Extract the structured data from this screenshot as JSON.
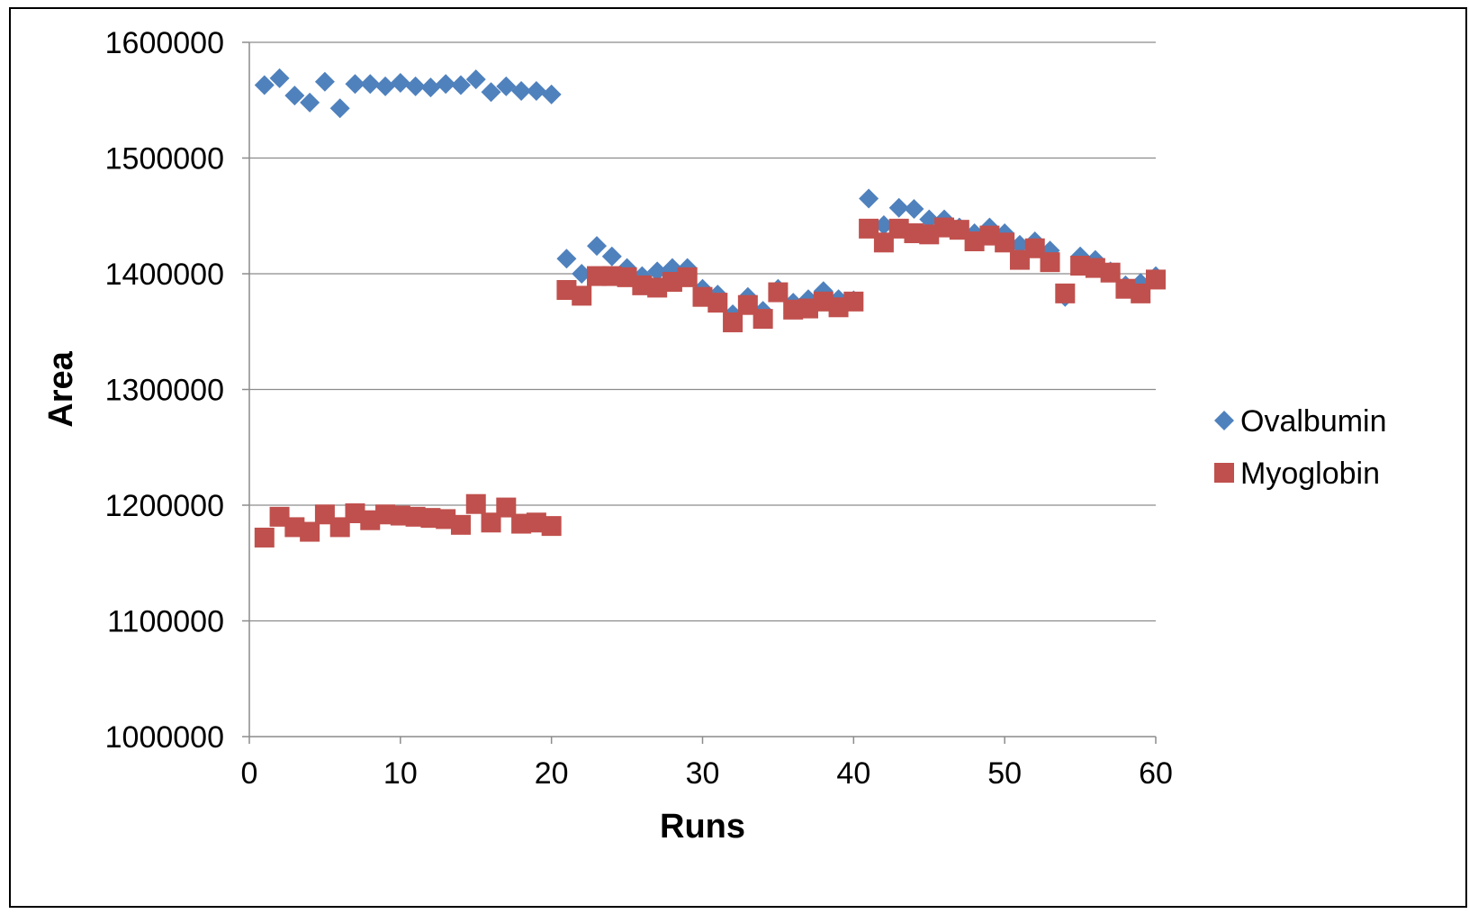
{
  "chart_data": {
    "type": "scatter",
    "title": "",
    "xlabel": "Runs",
    "ylabel": "Area",
    "xlim": [
      0,
      60
    ],
    "ylim": [
      1000000,
      1600000
    ],
    "xticks": [
      "0",
      "10",
      "20",
      "30",
      "40",
      "50",
      "60"
    ],
    "yticks": [
      "1000000",
      "1100000",
      "1200000",
      "1300000",
      "1400000",
      "1500000",
      "1600000"
    ],
    "grid": "horizontal",
    "legend_position": "right",
    "series": [
      {
        "name": "Ovalbumin",
        "marker": "diamond",
        "color": "#4F81BD",
        "x": [
          1,
          2,
          3,
          4,
          5,
          6,
          7,
          8,
          9,
          10,
          11,
          12,
          13,
          14,
          15,
          16,
          17,
          18,
          19,
          20,
          21,
          22,
          23,
          24,
          25,
          26,
          27,
          28,
          29,
          30,
          31,
          32,
          33,
          34,
          35,
          36,
          37,
          38,
          39,
          40,
          41,
          42,
          43,
          44,
          45,
          46,
          47,
          48,
          49,
          50,
          51,
          52,
          53,
          54,
          55,
          56,
          57,
          58,
          59,
          60
        ],
        "y": [
          1563000,
          1569000,
          1554000,
          1548000,
          1566000,
          1543000,
          1564000,
          1564000,
          1562000,
          1565000,
          1562000,
          1561000,
          1564000,
          1563000,
          1568000,
          1557000,
          1562000,
          1558000,
          1558000,
          1555000,
          1413000,
          1400000,
          1424000,
          1415000,
          1405000,
          1398000,
          1402000,
          1405000,
          1405000,
          1387000,
          1382000,
          1365000,
          1380000,
          1368000,
          1387000,
          1375000,
          1378000,
          1385000,
          1378000,
          1377000,
          1465000,
          1442000,
          1457000,
          1456000,
          1447000,
          1447000,
          1440000,
          1435000,
          1440000,
          1435000,
          1425000,
          1428000,
          1420000,
          1380000,
          1415000,
          1412000,
          1402000,
          1390000,
          1392000,
          1398000
        ]
      },
      {
        "name": "Myoglobin",
        "marker": "square",
        "color": "#C0504D",
        "x": [
          1,
          2,
          3,
          4,
          5,
          6,
          7,
          8,
          9,
          10,
          11,
          12,
          13,
          14,
          15,
          16,
          17,
          18,
          19,
          20,
          21,
          22,
          23,
          24,
          25,
          26,
          27,
          28,
          29,
          30,
          31,
          32,
          33,
          34,
          35,
          36,
          37,
          38,
          39,
          40,
          41,
          42,
          43,
          44,
          45,
          46,
          47,
          48,
          49,
          50,
          51,
          52,
          53,
          54,
          55,
          56,
          57,
          58,
          59,
          60
        ],
        "y": [
          1172000,
          1190000,
          1181000,
          1177000,
          1192000,
          1181000,
          1193000,
          1187000,
          1192000,
          1191000,
          1190000,
          1189000,
          1188000,
          1183000,
          1201000,
          1185000,
          1198000,
          1184000,
          1185000,
          1182000,
          1386000,
          1381000,
          1398000,
          1398000,
          1397000,
          1390000,
          1388000,
          1393000,
          1397000,
          1380000,
          1375000,
          1358000,
          1373000,
          1361000,
          1384000,
          1369000,
          1370000,
          1376000,
          1371000,
          1376000,
          1439000,
          1427000,
          1439000,
          1435000,
          1434000,
          1440000,
          1438000,
          1428000,
          1433000,
          1427000,
          1412000,
          1422000,
          1410000,
          1383000,
          1407000,
          1405000,
          1401000,
          1387000,
          1383000,
          1395000
        ]
      }
    ]
  }
}
